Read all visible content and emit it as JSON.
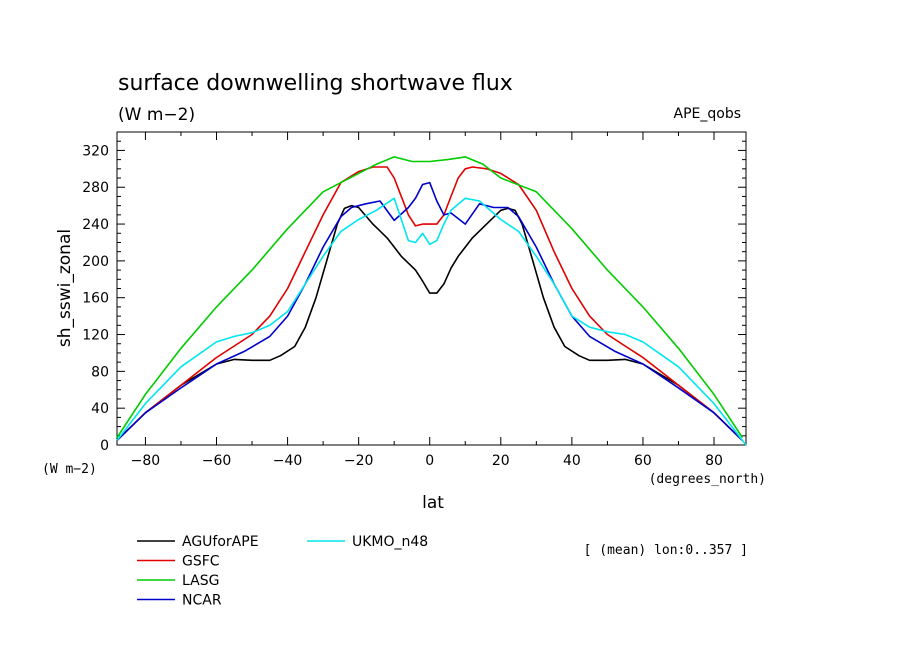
{
  "chart_data": {
    "type": "line",
    "title": "surface downwelling shortwave flux",
    "units_label": "(W m−2)",
    "experiment": "APE_qobs",
    "ylabel": "sh_sswi_zonal",
    "xlabel": "lat",
    "x_units": "(degrees_north)",
    "y_units": "(W m−2)",
    "annotation": "[ (mean) lon:0..357 ]",
    "xlim": [
      -88,
      89
    ],
    "ylim": [
      0,
      340
    ],
    "xticks": [
      -80,
      -60,
      -40,
      -20,
      0,
      20,
      40,
      60,
      80
    ],
    "yticks": [
      0,
      40,
      80,
      120,
      160,
      200,
      240,
      280,
      320
    ],
    "series": [
      {
        "name": "AGUforAPE",
        "color": "#000000",
        "x": [
          -88,
          -80,
          -70,
          -60,
          -55,
          -50,
          -45,
          -42,
          -38,
          -35,
          -32,
          -29,
          -26,
          -24,
          -22,
          -20,
          -16,
          -12,
          -8,
          -4,
          -2,
          0,
          2,
          4,
          6,
          8,
          12,
          16,
          20,
          22,
          24,
          26,
          29,
          32,
          35,
          38,
          42,
          45,
          50,
          55,
          60,
          70,
          80,
          88
        ],
        "y": [
          5,
          35,
          65,
          88,
          93,
          92,
          92,
          97,
          107,
          128,
          160,
          200,
          240,
          257,
          260,
          258,
          240,
          225,
          205,
          190,
          178,
          165,
          165,
          175,
          192,
          205,
          225,
          240,
          255,
          257,
          255,
          240,
          200,
          160,
          128,
          107,
          97,
          92,
          92,
          93,
          88,
          65,
          35,
          5
        ]
      },
      {
        "name": "GSFC",
        "color": "#e00000",
        "x": [
          -88,
          -80,
          -70,
          -60,
          -50,
          -45,
          -40,
          -35,
          -30,
          -25,
          -20,
          -16,
          -12,
          -10,
          -8,
          -6,
          -4,
          -2,
          0,
          2,
          4,
          6,
          8,
          10,
          12,
          16,
          20,
          25,
          30,
          35,
          40,
          45,
          50,
          60,
          70,
          80,
          88
        ],
        "y": [
          5,
          35,
          65,
          95,
          120,
          140,
          170,
          210,
          250,
          285,
          297,
          302,
          302,
          290,
          270,
          250,
          238,
          240,
          240,
          240,
          250,
          270,
          290,
          300,
          302,
          300,
          295,
          283,
          255,
          210,
          170,
          140,
          120,
          95,
          65,
          35,
          5
        ]
      },
      {
        "name": "LASG",
        "color": "#00cc00",
        "x": [
          -88,
          -80,
          -70,
          -60,
          -50,
          -40,
          -30,
          -20,
          -15,
          -10,
          -5,
          0,
          5,
          10,
          15,
          20,
          30,
          40,
          50,
          60,
          70,
          80,
          88
        ],
        "y": [
          8,
          55,
          105,
          150,
          190,
          235,
          275,
          295,
          305,
          313,
          308,
          308,
          310,
          313,
          305,
          290,
          275,
          235,
          190,
          150,
          105,
          55,
          8
        ]
      },
      {
        "name": "NCAR",
        "color": "#0000cc",
        "x": [
          -88,
          -80,
          -70,
          -60,
          -52,
          -45,
          -40,
          -35,
          -30,
          -25,
          -22,
          -18,
          -14,
          -10,
          -6,
          -4,
          -2,
          0,
          2,
          4,
          6,
          10,
          14,
          18,
          22,
          25,
          30,
          35,
          40,
          45,
          52,
          60,
          70,
          80,
          88
        ],
        "y": [
          5,
          35,
          62,
          88,
          102,
          118,
          140,
          175,
          215,
          248,
          258,
          262,
          265,
          244,
          258,
          268,
          283,
          285,
          265,
          250,
          252,
          240,
          262,
          258,
          258,
          248,
          215,
          175,
          140,
          118,
          102,
          88,
          62,
          35,
          5
        ]
      },
      {
        "name": "UKMO_n48",
        "color": "#00e5ee",
        "x": [
          -88,
          -80,
          -70,
          -60,
          -55,
          -50,
          -45,
          -40,
          -35,
          -30,
          -25,
          -20,
          -15,
          -10,
          -6,
          -4,
          -2,
          0,
          2,
          4,
          6,
          10,
          14,
          20,
          25,
          30,
          35,
          40,
          45,
          50,
          55,
          60,
          70,
          80,
          89
        ],
        "y": [
          5,
          45,
          85,
          112,
          118,
          122,
          130,
          145,
          175,
          205,
          232,
          245,
          255,
          268,
          222,
          220,
          230,
          218,
          222,
          240,
          255,
          268,
          265,
          245,
          232,
          205,
          175,
          140,
          128,
          123,
          120,
          112,
          85,
          45,
          0
        ]
      }
    ]
  }
}
